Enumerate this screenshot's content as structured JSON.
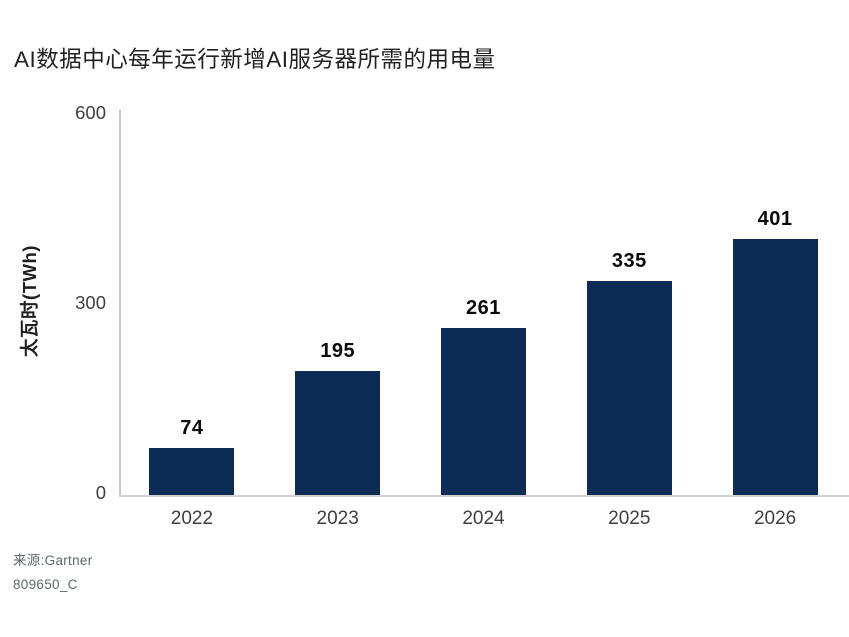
{
  "chart_data": {
    "type": "bar",
    "title": "AI数据中心每年运行新增AI服务器所需的用电量",
    "ylabel": "太瓦时(TWh)",
    "xlabel": "",
    "categories": [
      "2022",
      "2023",
      "2024",
      "2025",
      "2026"
    ],
    "values": [
      74,
      195,
      261,
      335,
      401
    ],
    "yticks": [
      0,
      300,
      600
    ],
    "ylim": [
      0,
      600
    ],
    "grid": false,
    "legend": false,
    "bar_color": "#0c2b55",
    "axis_line_color": "#c7c7c7",
    "source_line1": "来源:Gartner",
    "source_line2": "809650_C"
  }
}
